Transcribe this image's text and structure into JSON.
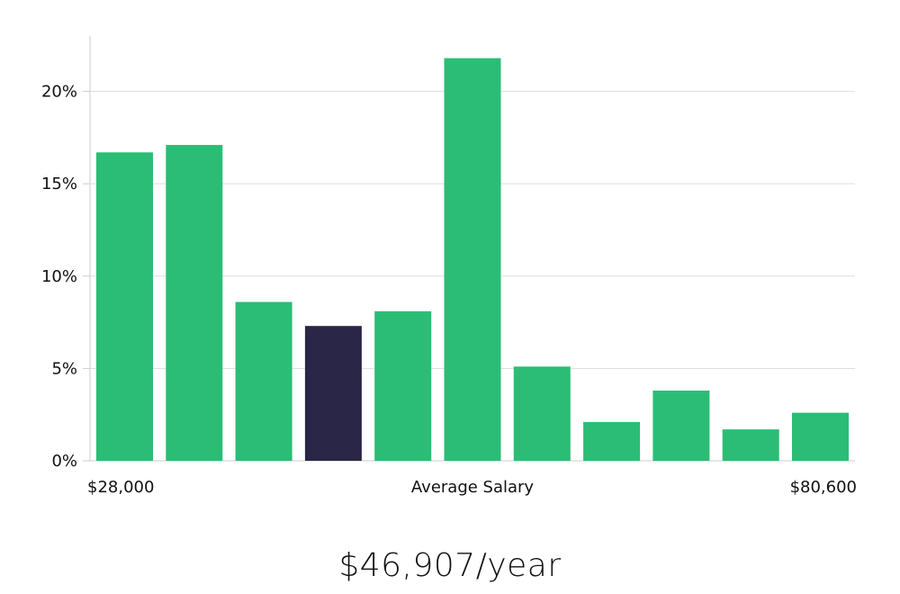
{
  "chart_data": {
    "type": "bar",
    "title": "",
    "xlabel": "Average Salary",
    "ylabel": "",
    "x_min_label": "$28,000",
    "x_max_label": "$80,600",
    "ylim": [
      0,
      23
    ],
    "yticks": [
      0,
      5,
      10,
      15,
      20
    ],
    "ytick_labels": [
      "0%",
      "5%",
      "10%",
      "15%",
      "20%"
    ],
    "grid": true,
    "values": [
      16.7,
      17.1,
      8.6,
      7.3,
      8.1,
      21.8,
      5.1,
      2.1,
      3.8,
      1.7,
      2.6
    ],
    "highlight_index": 3,
    "colors": {
      "bar": "#2bbd75",
      "highlight": "#2a2647",
      "grid": "#dddddd",
      "axis": "#cccccc"
    }
  },
  "summary": {
    "average_salary": "$46,907/year"
  }
}
